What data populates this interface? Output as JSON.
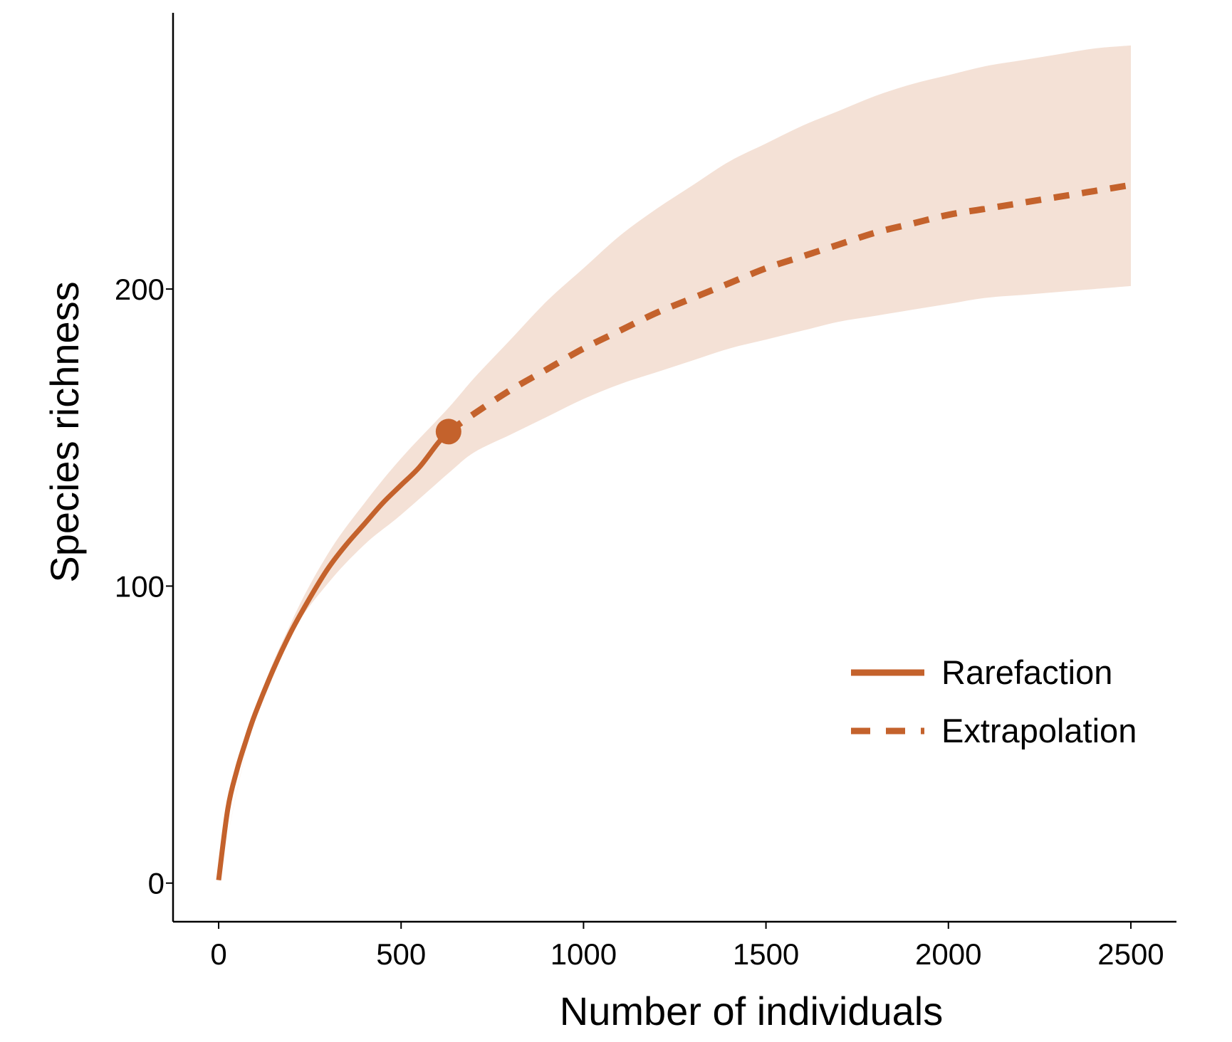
{
  "chart_data": {
    "type": "line",
    "title": "",
    "xlabel": "Number of individuals",
    "ylabel": "Species richness",
    "xlim": [
      -125,
      2625
    ],
    "ylim": [
      -13,
      293
    ],
    "x_ticks": [
      0,
      500,
      1000,
      1500,
      2000,
      2500
    ],
    "x_tick_labels": [
      "0",
      "500",
      "1000",
      "1500",
      "2000",
      "2500"
    ],
    "y_ticks": [
      0,
      100,
      200
    ],
    "y_tick_labels": [
      "0",
      "100",
      "200"
    ],
    "grid": false,
    "legend_position": "right",
    "colors": {
      "line": "#c4622c",
      "band": "#f4e1d6",
      "axis": "#000000"
    },
    "observed_point": {
      "x": 630,
      "y": 152
    },
    "series": [
      {
        "name": "Rarefaction",
        "style": "solid",
        "x": [
          0,
          25,
          50,
          75,
          100,
          150,
          200,
          250,
          300,
          350,
          400,
          450,
          500,
          550,
          600,
          630
        ],
        "y": [
          1,
          25,
          38,
          48,
          57,
          72,
          85,
          96,
          106,
          114,
          121,
          128,
          134,
          140,
          148,
          152
        ]
      },
      {
        "name": "Extrapolation",
        "style": "dashed",
        "x": [
          630,
          700,
          800,
          900,
          1000,
          1100,
          1200,
          1300,
          1400,
          1500,
          1600,
          1700,
          1800,
          1900,
          2000,
          2100,
          2200,
          2300,
          2400,
          2500
        ],
        "y": [
          152,
          158,
          166,
          173,
          180,
          186,
          192,
          197,
          202,
          207,
          211,
          215,
          219,
          222,
          225,
          227,
          229,
          231,
          233,
          235
        ]
      }
    ],
    "confidence_band": {
      "x": [
        0,
        100,
        200,
        300,
        400,
        500,
        630,
        700,
        800,
        900,
        1000,
        1100,
        1200,
        1300,
        1400,
        1500,
        1600,
        1700,
        1800,
        1900,
        2000,
        2100,
        2200,
        2300,
        2400,
        2500
      ],
      "lower": [
        1,
        57,
        84,
        101,
        114,
        124,
        138,
        145,
        151,
        157,
        163,
        168,
        172,
        176,
        180,
        183,
        186,
        189,
        191,
        193,
        195,
        197,
        198,
        199,
        200,
        201
      ],
      "upper": [
        1,
        57,
        88,
        111,
        128,
        143,
        160,
        170,
        183,
        196,
        207,
        218,
        227,
        235,
        243,
        249,
        255,
        260,
        265,
        269,
        272,
        275,
        277,
        279,
        281,
        282
      ]
    }
  }
}
